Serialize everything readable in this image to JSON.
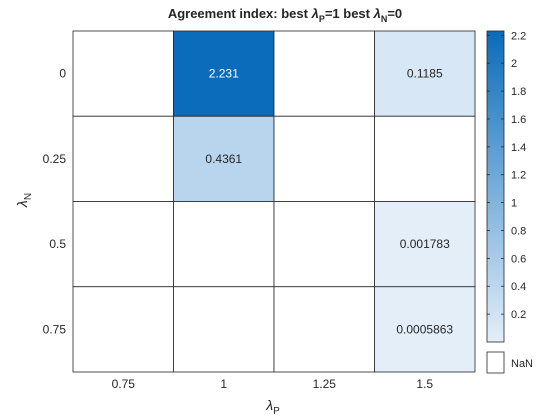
{
  "chart_data": {
    "type": "heatmap",
    "title_parts": [
      "Agreement index: best ",
      "λ",
      "P",
      "=1 best  ",
      "λ",
      "N",
      "=0"
    ],
    "xlabel": {
      "symbol": "λ",
      "sub": "P"
    },
    "ylabel": {
      "symbol": "λ",
      "sub": "N"
    },
    "x_categories": [
      "0.75",
      "1",
      "1.25",
      "1.5"
    ],
    "y_categories": [
      "0",
      "0.25",
      "0.5",
      "0.75"
    ],
    "cells": [
      [
        "",
        "2.231",
        "",
        "0.1185"
      ],
      [
        "",
        "0.4361",
        "",
        ""
      ],
      [
        "",
        "",
        "",
        "0.001783"
      ],
      [
        "",
        "",
        "",
        "0.0005863"
      ]
    ],
    "values": [
      [
        null,
        2.231,
        null,
        0.1185
      ],
      [
        null,
        0.4361,
        null,
        null
      ],
      [
        null,
        null,
        null,
        0.001783
      ],
      [
        null,
        null,
        null,
        0.0005863
      ]
    ],
    "colorbar": {
      "range": [
        0,
        2.231
      ],
      "ticks": [
        "0.2",
        "0.4",
        "0.6",
        "0.8",
        "1",
        "1.2",
        "1.4",
        "1.6",
        "1.8",
        "2",
        "2.2"
      ],
      "tick_values": [
        0.2,
        0.4,
        0.6,
        0.8,
        1.0,
        1.2,
        1.4,
        1.6,
        1.8,
        2.0,
        2.2
      ],
      "low_color": "#e3eef9",
      "high_color": "#0a6cba",
      "nan_label": "NaN",
      "nan_color": "#ffffff"
    },
    "grid": true,
    "text_dark": "#262626",
    "text_light": "#ffffff"
  }
}
